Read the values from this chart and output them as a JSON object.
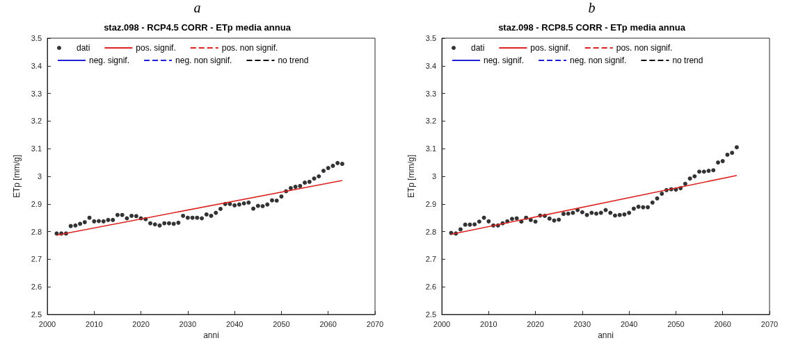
{
  "chart_data": [
    {
      "type": "scatter",
      "title": "staz.098 - RCP4.5 CORR - ETp media annua",
      "annotations": [
        "a"
      ],
      "xlabel": "anni",
      "ylabel": "ETp [mm/g]",
      "xlim": [
        2000,
        2070
      ],
      "xticks": [
        2000,
        2010,
        2020,
        2030,
        2040,
        2050,
        2060,
        2070
      ],
      "ylim": [
        2.5,
        3.5
      ],
      "yticks": [
        2.5,
        2.6,
        2.7,
        2.8,
        2.9,
        3,
        3.1,
        3.2,
        3.3,
        3.4,
        3.5
      ],
      "legend": "top",
      "grid": false,
      "series": [
        {
          "name": "dati",
          "marker": "circle",
          "color": "#000000",
          "x": [
            2002,
            2003,
            2004,
            2005,
            2006,
            2007,
            2008,
            2009,
            2010,
            2011,
            2012,
            2013,
            2014,
            2015,
            2016,
            2017,
            2018,
            2019,
            2020,
            2021,
            2022,
            2023,
            2024,
            2025,
            2026,
            2027,
            2028,
            2029,
            2030,
            2031,
            2032,
            2033,
            2034,
            2035,
            2036,
            2037,
            2038,
            2039,
            2040,
            2041,
            2042,
            2043,
            2044,
            2045,
            2046,
            2047,
            2048,
            2049,
            2050,
            2051,
            2052,
            2053,
            2054,
            2055,
            2056,
            2057,
            2058,
            2059,
            2060,
            2061,
            2062,
            2063
          ],
          "values": [
            2.793,
            2.793,
            2.793,
            2.82,
            2.822,
            2.828,
            2.834,
            2.85,
            2.837,
            2.838,
            2.837,
            2.842,
            2.842,
            2.86,
            2.86,
            2.848,
            2.857,
            2.856,
            2.848,
            2.845,
            2.83,
            2.826,
            2.822,
            2.83,
            2.83,
            2.828,
            2.832,
            2.857,
            2.85,
            2.85,
            2.85,
            2.848,
            2.862,
            2.857,
            2.868,
            2.882,
            2.9,
            2.9,
            2.895,
            2.898,
            2.902,
            2.905,
            2.883,
            2.893,
            2.892,
            2.898,
            2.913,
            2.912,
            2.927,
            2.946,
            2.957,
            2.962,
            2.965,
            2.977,
            2.98,
            2.992,
            3.0,
            3.02,
            3.03,
            3.038,
            3.048,
            3.045
          ]
        },
        {
          "name": "pos. signif.",
          "type": "line",
          "marker": "none",
          "color": "#dd2020",
          "line_style": "solid",
          "x": [
            2002,
            2063
          ],
          "values": [
            2.787,
            2.985
          ]
        },
        {
          "name": "pos. non signif.",
          "type": "line",
          "marker": "none",
          "color": "#dd2020",
          "line_style": "dashed"
        },
        {
          "name": "neg. signif.",
          "type": "line",
          "marker": "none",
          "color": "#1f1fd6",
          "line_style": "solid"
        },
        {
          "name": "neg. non signif.",
          "type": "line",
          "marker": "none",
          "color": "#1f1fd6",
          "line_style": "dashed"
        },
        {
          "name": "no trend",
          "type": "line",
          "marker": "none",
          "color": "#000000",
          "line_style": "dashed"
        }
      ]
    },
    {
      "type": "scatter",
      "title": "staz.098 - RCP8.5 CORR - ETp media annua",
      "annotations": [
        "b"
      ],
      "xlabel": "anni",
      "ylabel": "ETp [mm/g]",
      "xlim": [
        2000,
        2070
      ],
      "xticks": [
        2000,
        2010,
        2020,
        2030,
        2040,
        2050,
        2060,
        2070
      ],
      "ylim": [
        2.5,
        3.5
      ],
      "yticks": [
        2.5,
        2.6,
        2.7,
        2.8,
        2.9,
        3,
        3.1,
        3.2,
        3.3,
        3.4,
        3.5
      ],
      "legend": "top",
      "grid": false,
      "series": [
        {
          "name": "dati",
          "marker": "circle",
          "color": "#000000",
          "x": [
            2002,
            2003,
            2004,
            2005,
            2006,
            2007,
            2008,
            2009,
            2010,
            2011,
            2012,
            2013,
            2014,
            2015,
            2016,
            2017,
            2018,
            2019,
            2020,
            2021,
            2022,
            2023,
            2024,
            2025,
            2026,
            2027,
            2028,
            2029,
            2030,
            2031,
            2032,
            2033,
            2034,
            2035,
            2036,
            2037,
            2038,
            2039,
            2040,
            2041,
            2042,
            2043,
            2044,
            2045,
            2046,
            2047,
            2048,
            2049,
            2050,
            2051,
            2052,
            2053,
            2054,
            2055,
            2056,
            2057,
            2058,
            2059,
            2060,
            2061,
            2062,
            2063
          ],
          "values": [
            2.795,
            2.793,
            2.808,
            2.825,
            2.825,
            2.826,
            2.836,
            2.85,
            2.837,
            2.822,
            2.822,
            2.83,
            2.837,
            2.846,
            2.848,
            2.836,
            2.85,
            2.842,
            2.836,
            2.858,
            2.857,
            2.847,
            2.84,
            2.843,
            2.864,
            2.865,
            2.868,
            2.878,
            2.87,
            2.86,
            2.868,
            2.865,
            2.868,
            2.878,
            2.868,
            2.858,
            2.86,
            2.862,
            2.868,
            2.883,
            2.89,
            2.888,
            2.888,
            2.905,
            2.92,
            2.937,
            2.95,
            2.953,
            2.952,
            2.957,
            2.973,
            2.992,
            3.0,
            3.017,
            3.017,
            3.02,
            3.022,
            3.05,
            3.055,
            3.078,
            3.085,
            3.105
          ]
        },
        {
          "name": "pos. signif.",
          "type": "line",
          "marker": "none",
          "color": "#dd2020",
          "line_style": "solid",
          "x": [
            2002,
            2063
          ],
          "values": [
            2.79,
            3.003
          ]
        },
        {
          "name": "pos. non signif.",
          "type": "line",
          "marker": "none",
          "color": "#dd2020",
          "line_style": "dashed"
        },
        {
          "name": "neg. signif.",
          "type": "line",
          "marker": "none",
          "color": "#1f1fd6",
          "line_style": "solid"
        },
        {
          "name": "neg. non signif.",
          "type": "line",
          "marker": "none",
          "color": "#1f1fd6",
          "line_style": "dashed"
        },
        {
          "name": "no trend",
          "type": "line",
          "marker": "none",
          "color": "#000000",
          "line_style": "dashed"
        }
      ]
    }
  ]
}
